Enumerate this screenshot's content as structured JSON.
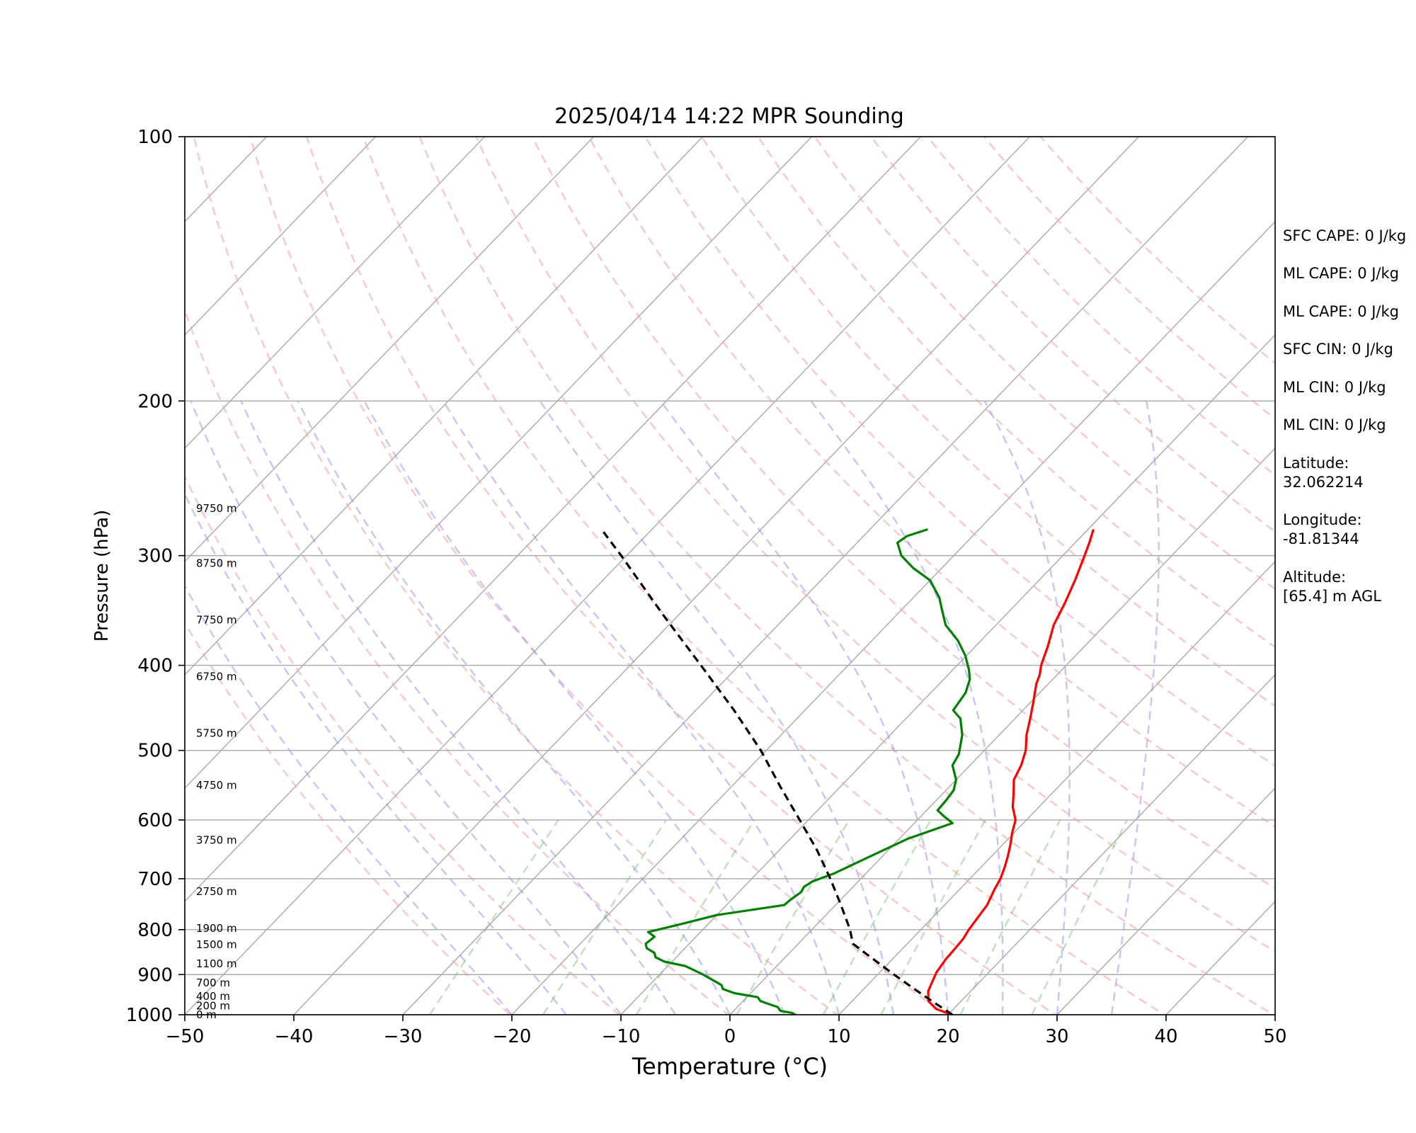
{
  "chart_data": {
    "type": "line",
    "title": "2025/04/14 14:22 MPR Sounding",
    "xlabel": "Temperature (°C)",
    "ylabel": "Pressure (hPa)",
    "xlim": [
      -50,
      50
    ],
    "ylim": [
      1000,
      100
    ],
    "y_scale": "log",
    "grid": true,
    "x_ticks": [
      "−50",
      "−40",
      "−30",
      "−20",
      "−10",
      "0",
      "10",
      "20",
      "30",
      "40",
      "50"
    ],
    "x_tick_values": [
      -50,
      -40,
      -30,
      -20,
      -10,
      0,
      10,
      20,
      30,
      40,
      50
    ],
    "y_ticks": [
      "100",
      "200",
      "300",
      "400",
      "500",
      "600",
      "700",
      "800",
      "900",
      "1000"
    ],
    "y_tick_values": [
      100,
      200,
      300,
      400,
      500,
      600,
      700,
      800,
      900,
      1000
    ],
    "skew_deg_per_decade_unit": 77.5,
    "series": [
      {
        "role": "temperature",
        "color": "#ff0000",
        "style": "solid",
        "points": [
          [
            1000,
            20.4
          ],
          [
            985,
            18.4
          ],
          [
            965,
            17.0
          ],
          [
            940,
            16.1
          ],
          [
            920,
            15.7
          ],
          [
            895,
            15.2
          ],
          [
            865,
            14.9
          ],
          [
            840,
            14.8
          ],
          [
            820,
            14.7
          ],
          [
            800,
            14.4
          ],
          [
            780,
            14.2
          ],
          [
            750,
            13.9
          ],
          [
            720,
            13.2
          ],
          [
            700,
            12.8
          ],
          [
            680,
            12.2
          ],
          [
            660,
            11.5
          ],
          [
            640,
            10.7
          ],
          [
            620,
            9.8
          ],
          [
            600,
            9.0
          ],
          [
            580,
            7.6
          ],
          [
            560,
            6.5
          ],
          [
            540,
            5.3
          ],
          [
            520,
            4.7
          ],
          [
            500,
            3.8
          ],
          [
            480,
            2.5
          ],
          [
            460,
            1.4
          ],
          [
            440,
            0.2
          ],
          [
            420,
            -1.1
          ],
          [
            410,
            -1.6
          ],
          [
            400,
            -2.3
          ],
          [
            380,
            -3.4
          ],
          [
            360,
            -4.7
          ],
          [
            340,
            -5.6
          ],
          [
            320,
            -6.7
          ],
          [
            300,
            -8.0
          ],
          [
            290,
            -8.7
          ],
          [
            280,
            -9.5
          ]
        ]
      },
      {
        "role": "dewpoint",
        "color": "#008000",
        "style": "solid",
        "points": [
          [
            1000,
            6.0
          ],
          [
            995,
            5.5
          ],
          [
            990,
            4.3
          ],
          [
            985,
            4.0
          ],
          [
            980,
            3.7
          ],
          [
            975,
            3.0
          ],
          [
            965,
            1.6
          ],
          [
            955,
            1.0
          ],
          [
            945,
            -1.5
          ],
          [
            935,
            -2.9
          ],
          [
            925,
            -3.4
          ],
          [
            900,
            -6.0
          ],
          [
            880,
            -8.4
          ],
          [
            870,
            -10.7
          ],
          [
            860,
            -11.9
          ],
          [
            850,
            -12.4
          ],
          [
            840,
            -13.5
          ],
          [
            830,
            -14.0
          ],
          [
            815,
            -13.8
          ],
          [
            810,
            -14.3
          ],
          [
            805,
            -14.8
          ],
          [
            790,
            -12.7
          ],
          [
            770,
            -10.0
          ],
          [
            750,
            -4.7
          ],
          [
            740,
            -4.6
          ],
          [
            725,
            -4.3
          ],
          [
            715,
            -4.5
          ],
          [
            705,
            -4.2
          ],
          [
            690,
            -2.9
          ],
          [
            660,
            -1.1
          ],
          [
            630,
            0.8
          ],
          [
            605,
            3.5
          ],
          [
            595,
            2.2
          ],
          [
            585,
            1.0
          ],
          [
            570,
            0.9
          ],
          [
            555,
            0.7
          ],
          [
            540,
            0.0
          ],
          [
            520,
            -1.6
          ],
          [
            505,
            -2.0
          ],
          [
            480,
            -3.4
          ],
          [
            460,
            -5.0
          ],
          [
            450,
            -6.4
          ],
          [
            430,
            -6.8
          ],
          [
            415,
            -7.6
          ],
          [
            405,
            -8.5
          ],
          [
            390,
            -10.1
          ],
          [
            375,
            -12.1
          ],
          [
            360,
            -14.6
          ],
          [
            345,
            -16.4
          ],
          [
            335,
            -17.6
          ],
          [
            320,
            -20.0
          ],
          [
            310,
            -22.6
          ],
          [
            300,
            -24.8
          ],
          [
            290,
            -26.3
          ],
          [
            285,
            -26.0
          ],
          [
            280,
            -24.7
          ]
        ]
      },
      {
        "role": "parcel",
        "color": "#000000",
        "style": "dashed",
        "points": [
          [
            1000,
            20.4
          ],
          [
            950,
            16.0
          ],
          [
            900,
            11.5
          ],
          [
            850,
            6.9
          ],
          [
            830,
            5.0
          ],
          [
            800,
            3.5
          ],
          [
            750,
            0.5
          ],
          [
            700,
            -2.8
          ],
          [
            650,
            -6.5
          ],
          [
            600,
            -10.8
          ],
          [
            550,
            -15.5
          ],
          [
            500,
            -20.5
          ],
          [
            450,
            -26.5
          ],
          [
            400,
            -33.5
          ],
          [
            350,
            -41.5
          ],
          [
            300,
            -50.5
          ],
          [
            282,
            -54.2
          ]
        ]
      }
    ],
    "dry_adiabats_theta_K": [
      253,
      263,
      273,
      283,
      293,
      303,
      313,
      323,
      333,
      343,
      353,
      363,
      373,
      383,
      393,
      403,
      413,
      423,
      433
    ],
    "moist_adiabats_start_C": [
      -20,
      -15,
      -10,
      -5,
      0,
      5,
      10,
      15,
      20,
      25,
      30,
      35
    ],
    "mixing_ratio_lines_gkg": [
      0.4,
      1,
      2,
      4,
      7,
      10,
      16,
      24
    ],
    "height_labels": [
      {
        "p": 1000,
        "text": "0 m"
      },
      {
        "p": 977,
        "text": "200 m"
      },
      {
        "p": 953,
        "text": "400 m"
      },
      {
        "p": 920,
        "text": "700 m"
      },
      {
        "p": 875,
        "text": "1100 m"
      },
      {
        "p": 832,
        "text": "1500 m"
      },
      {
        "p": 797,
        "text": "1900 m"
      },
      {
        "p": 724,
        "text": "2750 m"
      },
      {
        "p": 633,
        "text": "3750 m"
      },
      {
        "p": 548,
        "text": "4750 m"
      },
      {
        "p": 478,
        "text": "5750 m"
      },
      {
        "p": 412,
        "text": "6750 m"
      },
      {
        "p": 355,
        "text": "7750 m"
      },
      {
        "p": 306,
        "text": "8750 m"
      },
      {
        "p": 265,
        "text": "9750 m"
      }
    ]
  },
  "stats": {
    "sfc_cape": "SFC CAPE: 0 J/kg",
    "ml_cape_1": "ML CAPE: 0 J/kg",
    "ml_cape_2": "ML CAPE: 0 J/kg",
    "sfc_cin": "SFC CIN: 0 J/kg",
    "ml_cin_1": "ML CIN: 0 J/kg",
    "ml_cin_2": "ML CIN: 0 J/kg",
    "latitude_label": "Latitude:",
    "latitude_value": "32.062214",
    "longitude_label": "Longitude:",
    "longitude_value": "-81.81344",
    "altitude_label": "Altitude:",
    "altitude_value": "[65.4] m AGL"
  }
}
